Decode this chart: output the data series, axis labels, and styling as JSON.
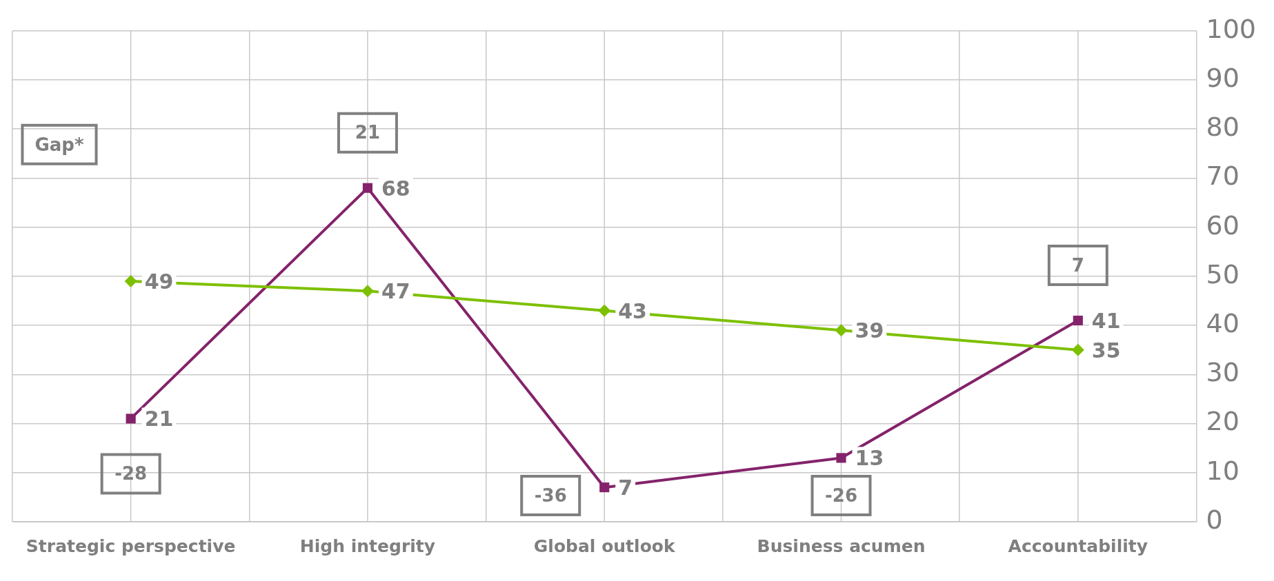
{
  "chart_data": {
    "type": "line",
    "categories": [
      "Strategic perspective",
      "High integrity",
      "Global outlook",
      "Business acumen",
      "Accountability"
    ],
    "series": [
      {
        "color": "#7dc000",
        "marker": "diamond",
        "values": [
          49,
          47,
          43,
          39,
          35
        ]
      },
      {
        "color": "#84236b",
        "marker": "square",
        "values": [
          21,
          68,
          7,
          13,
          41
        ]
      }
    ],
    "ylim": [
      0,
      100
    ],
    "yticks": [
      0,
      10,
      20,
      30,
      40,
      50,
      60,
      70,
      80,
      90,
      100
    ],
    "grid": true,
    "legend": false,
    "data_labels": true,
    "annotations": [
      "Gap*",
      "-28",
      "21",
      "-36",
      "-26",
      "7"
    ]
  }
}
